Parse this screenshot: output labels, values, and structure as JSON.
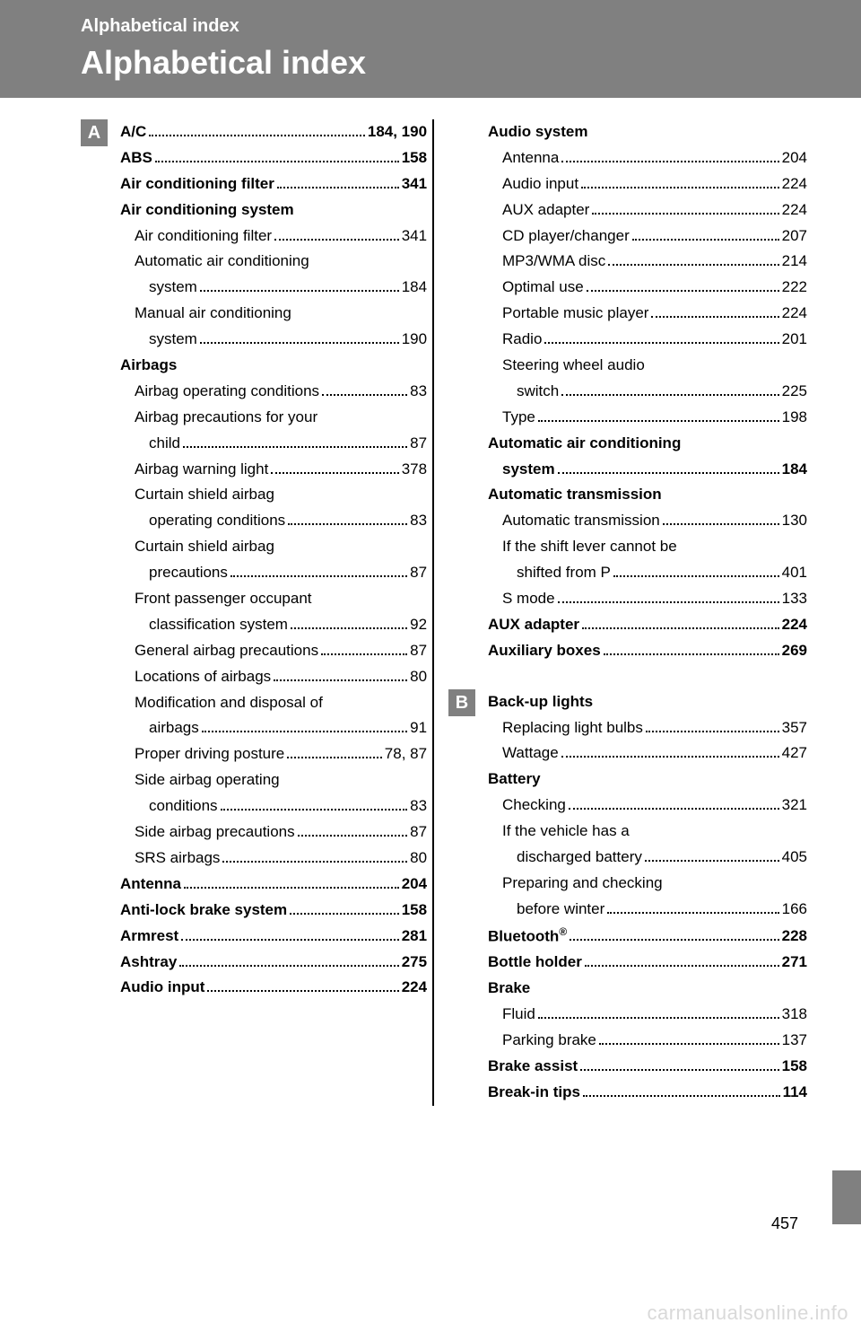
{
  "header": {
    "small": "Alphabetical index",
    "large": "Alphabetical index"
  },
  "pageNumber": "457",
  "watermark": "carmanualsonline.info",
  "letters": {
    "A": "A",
    "B": "B"
  },
  "left": [
    {
      "t": "A/C",
      "p": "184, 190",
      "b": true
    },
    {
      "t": "ABS",
      "p": "158",
      "b": true
    },
    {
      "t": "Air conditioning filter",
      "p": "341",
      "b": true
    },
    {
      "t": "Air conditioning system",
      "b": true,
      "nopage": true
    },
    {
      "t": "Air conditioning filter",
      "p": "341",
      "sub": 1
    },
    {
      "t": "Automatic air conditioning",
      "sub": 1,
      "nopage": true
    },
    {
      "t": "system",
      "p": "184",
      "sub": 2
    },
    {
      "t": "Manual air conditioning",
      "sub": 1,
      "nopage": true
    },
    {
      "t": "system",
      "p": "190",
      "sub": 2
    },
    {
      "t": "Airbags",
      "b": true,
      "nopage": true
    },
    {
      "t": "Airbag operating conditions",
      "p": "83",
      "sub": 1
    },
    {
      "t": "Airbag precautions for your",
      "sub": 1,
      "nopage": true
    },
    {
      "t": "child",
      "p": "87",
      "sub": 2
    },
    {
      "t": "Airbag warning light",
      "p": "378",
      "sub": 1
    },
    {
      "t": "Curtain shield airbag",
      "sub": 1,
      "nopage": true
    },
    {
      "t": "operating conditions",
      "p": "83",
      "sub": 2
    },
    {
      "t": "Curtain shield airbag",
      "sub": 1,
      "nopage": true
    },
    {
      "t": "precautions",
      "p": "87",
      "sub": 2
    },
    {
      "t": "Front passenger occupant",
      "sub": 1,
      "nopage": true
    },
    {
      "t": "classification system",
      "p": "92",
      "sub": 2
    },
    {
      "t": "General airbag precautions",
      "p": "87",
      "sub": 1
    },
    {
      "t": "Locations of airbags",
      "p": "80",
      "sub": 1
    },
    {
      "t": "Modification and disposal of",
      "sub": 1,
      "nopage": true
    },
    {
      "t": "airbags",
      "p": "91",
      "sub": 2
    },
    {
      "t": "Proper driving posture",
      "p": "78, 87",
      "sub": 1
    },
    {
      "t": "Side airbag operating",
      "sub": 1,
      "nopage": true
    },
    {
      "t": "conditions",
      "p": "83",
      "sub": 2
    },
    {
      "t": "Side airbag precautions",
      "p": "87",
      "sub": 1
    },
    {
      "t": "SRS airbags",
      "p": "80",
      "sub": 1
    },
    {
      "t": "Antenna",
      "p": "204",
      "b": true
    },
    {
      "t": "Anti-lock brake system",
      "p": "158",
      "b": true
    },
    {
      "t": "Armrest",
      "p": "281",
      "b": true
    },
    {
      "t": "Ashtray",
      "p": "275",
      "b": true
    },
    {
      "t": "Audio input",
      "p": "224",
      "b": true
    }
  ],
  "rightA": [
    {
      "t": "Audio system",
      "b": true,
      "nopage": true
    },
    {
      "t": "Antenna",
      "p": "204",
      "sub": 1
    },
    {
      "t": "Audio input",
      "p": "224",
      "sub": 1
    },
    {
      "t": "AUX adapter",
      "p": "224",
      "sub": 1
    },
    {
      "t": "CD player/changer",
      "p": "207",
      "sub": 1
    },
    {
      "t": "MP3/WMA disc",
      "p": "214",
      "sub": 1
    },
    {
      "t": "Optimal use",
      "p": "222",
      "sub": 1
    },
    {
      "t": "Portable music player",
      "p": "224",
      "sub": 1
    },
    {
      "t": "Radio",
      "p": "201",
      "sub": 1
    },
    {
      "t": "Steering wheel audio",
      "sub": 1,
      "nopage": true
    },
    {
      "t": "switch",
      "p": "225",
      "sub": 2
    },
    {
      "t": "Type",
      "p": "198",
      "sub": 1
    },
    {
      "t": "Automatic air conditioning",
      "b": true,
      "nopage": true
    },
    {
      "t": "system",
      "p": "184",
      "b": true,
      "sub": 1
    },
    {
      "t": "Automatic transmission",
      "b": true,
      "nopage": true
    },
    {
      "t": "Automatic transmission",
      "p": "130",
      "sub": 1
    },
    {
      "t": "If the shift lever cannot be",
      "sub": 1,
      "nopage": true
    },
    {
      "t": "shifted from P",
      "p": "401",
      "sub": 2
    },
    {
      "t": "S mode",
      "p": "133",
      "sub": 1
    },
    {
      "t": "AUX adapter",
      "p": "224",
      "b": true
    },
    {
      "t": "Auxiliary boxes",
      "p": "269",
      "b": true
    }
  ],
  "rightB": [
    {
      "t": "Back-up lights",
      "b": true,
      "nopage": true
    },
    {
      "t": "Replacing light bulbs",
      "p": "357",
      "sub": 1
    },
    {
      "t": "Wattage",
      "p": "427",
      "sub": 1
    },
    {
      "t": "Battery",
      "b": true,
      "nopage": true
    },
    {
      "t": "Checking",
      "p": "321",
      "sub": 1
    },
    {
      "t": "If the vehicle has a",
      "sub": 1,
      "nopage": true
    },
    {
      "t": "discharged battery",
      "p": "405",
      "sub": 2
    },
    {
      "t": "Preparing and checking",
      "sub": 1,
      "nopage": true
    },
    {
      "t": "before winter",
      "p": "166",
      "sub": 2
    },
    {
      "t": "Bluetooth",
      "sup": "®",
      "p": "228",
      "b": true
    },
    {
      "t": "Bottle holder",
      "p": "271",
      "b": true
    },
    {
      "t": "Brake",
      "b": true,
      "nopage": true
    },
    {
      "t": "Fluid",
      "p": "318",
      "sub": 1
    },
    {
      "t": "Parking brake",
      "p": "137",
      "sub": 1
    },
    {
      "t": "Brake assist",
      "p": "158",
      "b": true
    },
    {
      "t": "Break-in tips",
      "p": "114",
      "b": true
    }
  ]
}
